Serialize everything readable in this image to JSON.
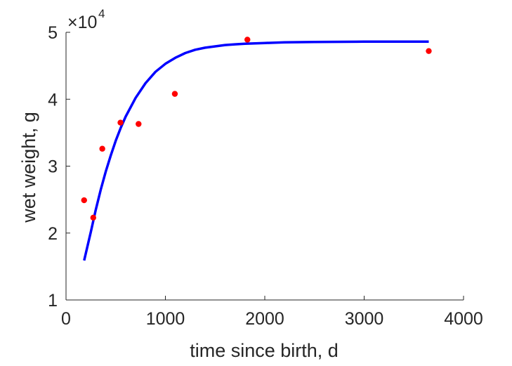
{
  "chart_data": {
    "type": "scatter",
    "title": "",
    "xlabel": "time since birth, d",
    "ylabel": "wet weight, g",
    "xlim": [
      0,
      4000
    ],
    "ylim": [
      1,
      5
    ],
    "y_multiplier": "×10",
    "y_multiplier_exponent": "4",
    "xticks": [
      "0",
      "1000",
      "2000",
      "3000",
      "4000"
    ],
    "yticks": [
      "1",
      "2",
      "3",
      "4",
      "5"
    ],
    "grid": false,
    "series": [
      {
        "kind": "points",
        "color": "#ff0000",
        "x": [
          182,
          274,
          365,
          548,
          730,
          1095,
          1825,
          3650
        ],
        "y": [
          2.49,
          2.23,
          3.26,
          3.65,
          3.63,
          4.08,
          4.89,
          4.72
        ]
      },
      {
        "kind": "line",
        "color": "#0000ff",
        "x": [
          182,
          250,
          300,
          350,
          400,
          450,
          500,
          550,
          600,
          700,
          800,
          900,
          1000,
          1100,
          1200,
          1300,
          1400,
          1500,
          1600,
          1700,
          1800,
          2000,
          2200,
          2500,
          3000,
          3650
        ],
        "y": [
          1.59,
          2.02,
          2.35,
          2.65,
          2.92,
          3.16,
          3.38,
          3.57,
          3.74,
          4.02,
          4.24,
          4.41,
          4.53,
          4.62,
          4.69,
          4.74,
          4.77,
          4.79,
          4.81,
          4.82,
          4.83,
          4.84,
          4.85,
          4.855,
          4.86,
          4.86
        ]
      }
    ]
  }
}
